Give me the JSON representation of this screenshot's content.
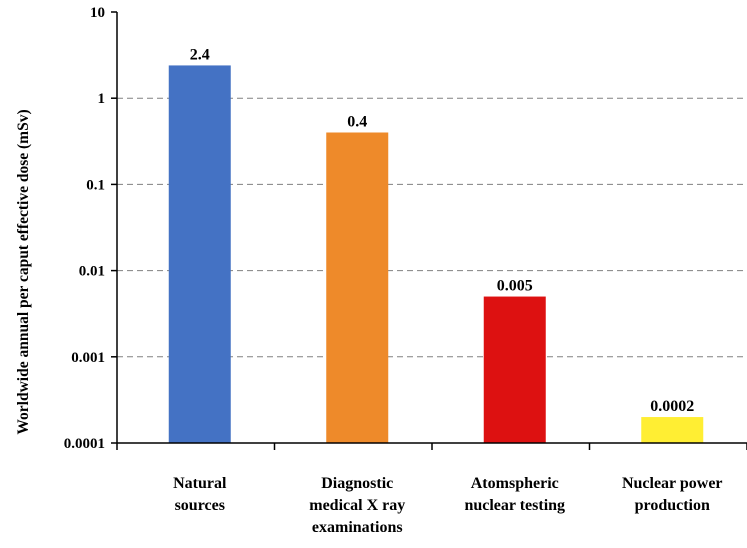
{
  "chart_data": {
    "type": "bar",
    "yscale": "log",
    "ylim": [
      0.0001,
      10
    ],
    "ylabel": "Worldwide annual per caput effective dose (mSv)",
    "xlabel": "",
    "grid": "horizontal dashed",
    "legend": "none",
    "categories": [
      [
        "Natural",
        "sources"
      ],
      [
        "Diagnostic",
        "medical X ray",
        "examinations"
      ],
      [
        "Atomspheric",
        "nuclear testing"
      ],
      [
        "Nuclear power",
        "production"
      ]
    ],
    "values": [
      2.4,
      0.4,
      0.005,
      0.0002
    ],
    "data_labels": [
      "2.4",
      "0.4",
      "0.005",
      "0.0002"
    ],
    "colors": [
      "#4472c4",
      "#ee8a2a",
      "#dd1111",
      "#ffee33"
    ],
    "ticks": [
      {
        "value": 0.0001,
        "label": "0.0001"
      },
      {
        "value": 0.001,
        "label": "0.001"
      },
      {
        "value": 0.01,
        "label": "0.01"
      },
      {
        "value": 0.1,
        "label": "0.1"
      },
      {
        "value": 1,
        "label": "1"
      },
      {
        "value": 10,
        "label": "10"
      }
    ]
  }
}
